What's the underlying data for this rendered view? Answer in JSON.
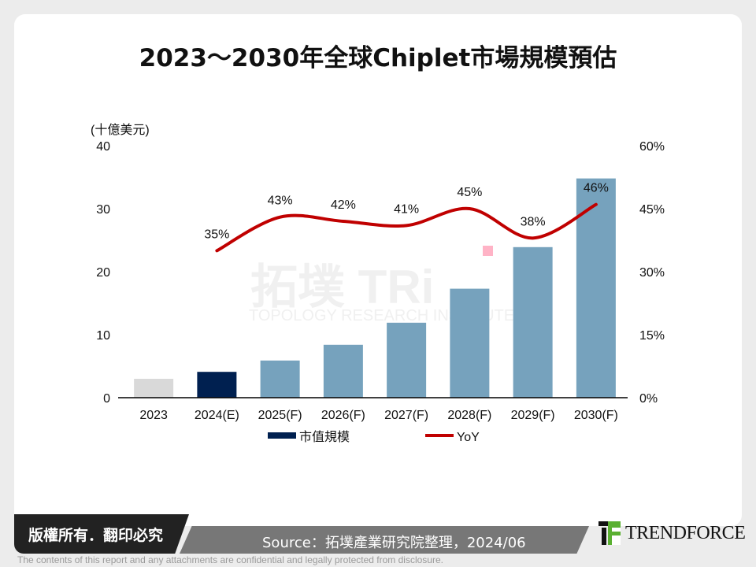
{
  "title": "2023～2030年全球Chiplet市場規模預估",
  "chart_data": {
    "type": "bar+line",
    "title": "2023～2030年全球Chiplet市場規模預估",
    "left_axis": {
      "label": "(十億美元)",
      "range": [
        0,
        40
      ],
      "ticks": [
        "0",
        "10",
        "20",
        "30",
        "40"
      ]
    },
    "right_axis": {
      "range": [
        0,
        60
      ],
      "ticks": [
        "0%",
        "15%",
        "30%",
        "45%",
        "60%"
      ]
    },
    "categories": [
      "2023",
      "2024(E)",
      "2025(F)",
      "2026(F)",
      "2027(F)",
      "2028(F)",
      "2029(F)",
      "2030(F)"
    ],
    "series": [
      {
        "name": "市值規模",
        "type": "bar",
        "axis": "left",
        "values": [
          3.0,
          4.1,
          5.9,
          8.4,
          11.9,
          17.3,
          23.9,
          34.8
        ],
        "colors": [
          "#d9d9d9",
          "#002050",
          "#76a2bd",
          "#76a2bd",
          "#76a2bd",
          "#76a2bd",
          "#76a2bd",
          "#76a2bd"
        ]
      },
      {
        "name": "YoY",
        "type": "line",
        "axis": "right",
        "color": "#c00000",
        "values": [
          null,
          35,
          43,
          42,
          41,
          45,
          38,
          46
        ],
        "labels": [
          "",
          "35%",
          "43%",
          "42%",
          "41%",
          "45%",
          "38%",
          "46%"
        ]
      }
    ],
    "legend": {
      "position": "bottom",
      "items": [
        "市值規模",
        "YoY"
      ]
    },
    "grid": false
  },
  "watermark": "拓墣 TRi TOPOLOGY RESEARCH INSTITUTE",
  "footer": {
    "copyright": "版權所有．翻印必究",
    "source": "Source：拓墣產業研究院整理，2024/06",
    "logo": "TRENDFORCE",
    "disclaimer": "The contents of this report and any attachments are confidential and legally protected from disclosure."
  }
}
